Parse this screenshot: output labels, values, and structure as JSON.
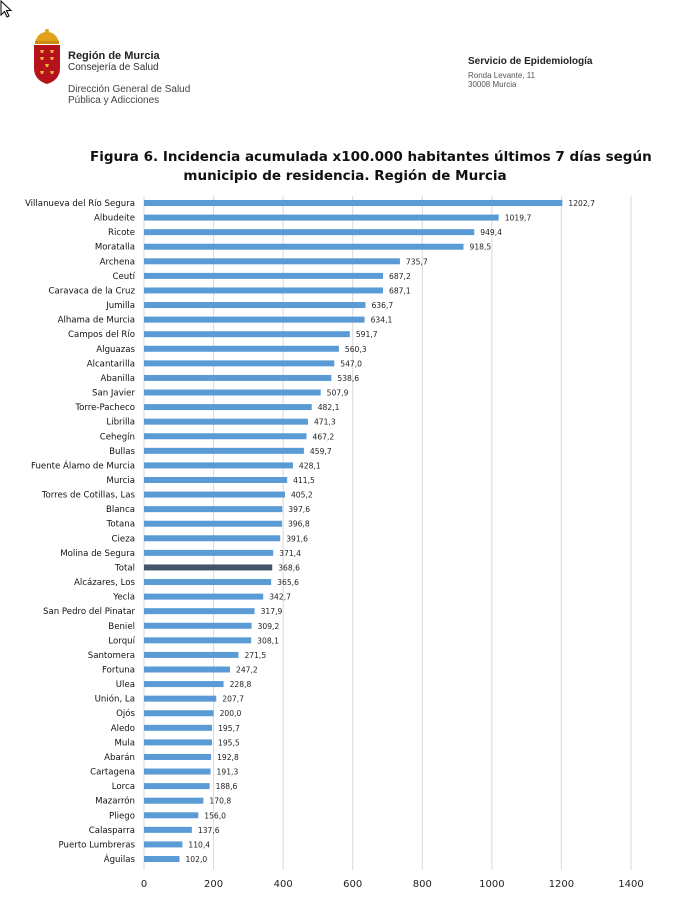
{
  "header": {
    "region_name": "Región de Murcia",
    "consejeria": "Consejería de Salud",
    "direccion_line1": "Dirección General de Salud",
    "direccion_line2": "Pública y Adicciones",
    "service_name": "Servicio de Epidemiología",
    "address_line1": "Ronda Levante, 11",
    "address_line2": "30008 Murcia"
  },
  "colors": {
    "bar": "#5b9bd5",
    "total_bar": "#44546a",
    "grid": "#d9d9d9"
  },
  "chart_data": {
    "type": "bar",
    "orientation": "horizontal",
    "title_line1": "Figura 6. Incidencia acumulada x100.000 habitantes últimos 7 días según",
    "title_line2": "municipio de residencia. Región de Murcia",
    "xlabel": "",
    "ylabel": "",
    "xlim": [
      0,
      1400
    ],
    "ticks": [
      "0",
      "200",
      "400",
      "600",
      "800",
      "1000",
      "1200",
      "1400"
    ],
    "tick_values": [
      0,
      200,
      400,
      600,
      800,
      1000,
      1200,
      1400
    ],
    "grid": true,
    "legend": "none",
    "highlight_category": "Total",
    "categories": [
      "Villanueva del Río Segura",
      "Albudeite",
      "Ricote",
      "Moratalla",
      "Archena",
      "Ceutí",
      "Caravaca de la Cruz",
      "Jumilla",
      "Alhama de Murcia",
      "Campos del Río",
      "Alguazas",
      "Alcantarilla",
      "Abanilla",
      "San Javier",
      "Torre-Pacheco",
      "Librilla",
      "Cehegín",
      "Bullas",
      "Fuente Álamo de Murcia",
      "Murcia",
      "Torres de Cotillas, Las",
      "Blanca",
      "Totana",
      "Cieza",
      "Molina de Segura",
      "Total",
      "Alcázares, Los",
      "Yecla",
      "San Pedro del Pinatar",
      "Beniel",
      "Lorquí",
      "Santomera",
      "Fortuna",
      "Ulea",
      "Unión, La",
      "Ojós",
      "Aledo",
      "Mula",
      "Abarán",
      "Cartagena",
      "Lorca",
      "Mazarrón",
      "Pliego",
      "Calasparra",
      "Puerto Lumbreras",
      "Águilas"
    ],
    "values": [
      1202.7,
      1019.7,
      949.4,
      918.5,
      735.7,
      687.2,
      687.1,
      636.7,
      634.1,
      591.7,
      560.3,
      547.0,
      538.6,
      507.9,
      482.1,
      471.3,
      467.2,
      459.7,
      428.1,
      411.5,
      405.2,
      397.6,
      396.8,
      391.6,
      371.4,
      368.6,
      365.6,
      342.7,
      317.9,
      309.2,
      308.1,
      271.5,
      247.2,
      228.8,
      207.7,
      200.0,
      195.7,
      195.5,
      192.8,
      191.3,
      188.6,
      170.8,
      156.0,
      137.6,
      110.4,
      102.0
    ],
    "value_labels": [
      "1202,7",
      "1019,7",
      "949,4",
      "918,5",
      "735,7",
      "687,2",
      "687,1",
      "636,7",
      "634,1",
      "591,7",
      "560,3",
      "547,0",
      "538,6",
      "507,9",
      "482,1",
      "471,3",
      "467,2",
      "459,7",
      "428,1",
      "411,5",
      "405,2",
      "397,6",
      "396,8",
      "391,6",
      "371,4",
      "368,6",
      "365,6",
      "342,7",
      "317,9",
      "309,2",
      "308,1",
      "271,5",
      "247,2",
      "228,8",
      "207,7",
      "200,0",
      "195,7",
      "195,5",
      "192,8",
      "191,3",
      "188,6",
      "170,8",
      "156,0",
      "137,6",
      "110,4",
      "102,0"
    ]
  }
}
